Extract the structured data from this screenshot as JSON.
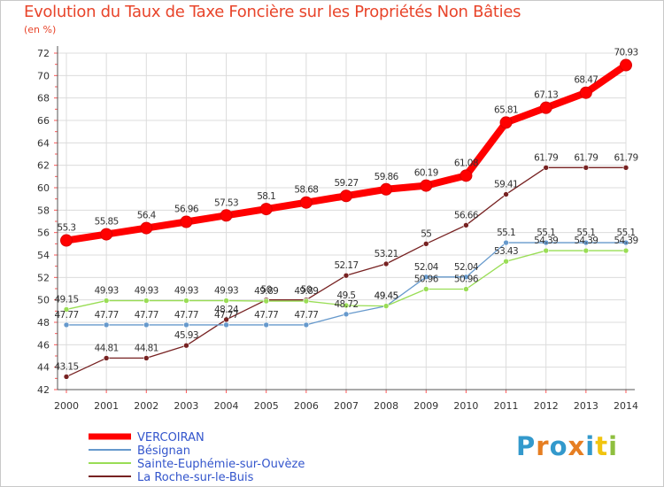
{
  "chart_data": {
    "type": "line",
    "title": "Evolution du Taux de Taxe Foncière sur les Propriétés Non Bâties",
    "subtitle": "(en %)",
    "x": [
      "2000",
      "2001",
      "2002",
      "2003",
      "2004",
      "2005",
      "2006",
      "2007",
      "2008",
      "2009",
      "2010",
      "2011",
      "2012",
      "2013",
      "2014"
    ],
    "ylim": [
      42,
      72
    ],
    "yticks": [
      42,
      44,
      46,
      48,
      50,
      52,
      54,
      56,
      58,
      60,
      62,
      64,
      66,
      68,
      70,
      72
    ],
    "grid": true,
    "legend_position": "bottom-left",
    "series": [
      {
        "name": "VERCOIRAN",
        "color": "#ff0000",
        "values": [
          55.3,
          55.85,
          56.4,
          56.96,
          57.53,
          58.1,
          58.68,
          59.27,
          59.86,
          60.19,
          61.08,
          65.81,
          67.13,
          68.47,
          70.93
        ],
        "labels": [
          "55.3",
          "55.85",
          "56.4",
          "56.96",
          "57.53",
          "58.1",
          "58.68",
          "59.27",
          "59.86",
          "60.19",
          "61.08",
          "65.81",
          "67.13",
          "68.47",
          "70.93"
        ]
      },
      {
        "name": "Bésignan",
        "color": "#6699cc",
        "values": [
          47.77,
          47.77,
          47.77,
          47.77,
          47.77,
          47.77,
          47.77,
          48.72,
          49.45,
          52.04,
          52.04,
          55.1,
          55.1,
          55.1,
          55.1
        ],
        "labels": [
          "47.77",
          "47.77",
          "47.77",
          "47.77",
          "47.77",
          "47.77",
          "47.77",
          "48.72",
          "49.45",
          "52.04",
          "52.04",
          "55.1",
          "55.1",
          "55.1",
          "55.1"
        ]
      },
      {
        "name": "Sainte-Euphémie-sur-Ouvèze",
        "color": "#99dd55",
        "values": [
          49.15,
          49.93,
          49.93,
          49.93,
          49.93,
          49.89,
          49.89,
          49.5,
          49.45,
          50.96,
          50.96,
          53.43,
          54.39,
          54.39,
          54.39
        ],
        "labels": [
          "49.15",
          "49.93",
          "49.93",
          "49.93",
          "49.93",
          "49.89",
          "49.89",
          "49.5",
          "49.45",
          "50.96",
          "50.96",
          "53.43",
          "54.39",
          "54.39",
          "54.39"
        ]
      },
      {
        "name": "La Roche-sur-le-Buis",
        "color": "#772222",
        "values": [
          43.15,
          44.81,
          44.81,
          45.93,
          48.24,
          50,
          50,
          52.17,
          53.21,
          55,
          56.66,
          59.41,
          61.79,
          61.79,
          61.79
        ],
        "labels": [
          "43.15",
          "44.81",
          "44.81",
          "45.93",
          "48.24",
          "50",
          "50",
          "52.17",
          "53.21",
          "55",
          "56.66",
          "59.41",
          "61.79",
          "61.79",
          "61.79"
        ]
      }
    ]
  },
  "logo": {
    "letters": [
      "P",
      "r",
      "o",
      "x",
      "i",
      "t",
      "i"
    ],
    "colors": [
      "#3399cc",
      "#e67e22",
      "#3399cc",
      "#e67e22",
      "#3399cc",
      "#f1c40f",
      "#8fbf3f"
    ]
  }
}
